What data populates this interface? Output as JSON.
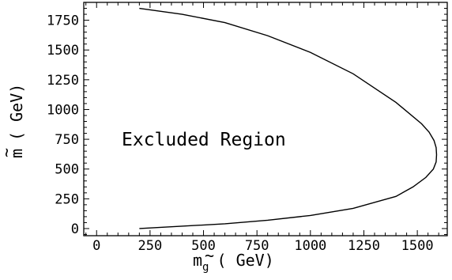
{
  "chart_data": {
    "type": "line",
    "xlabel_main": "m",
    "xlabel_sub": "g",
    "xlabel_unit": "( GeV)",
    "ylabel_main": "m",
    "ylabel_unit": "( GeV)",
    "xlim": [
      -60,
      1640
    ],
    "ylim": [
      -60,
      1900
    ],
    "xticks": [
      0,
      250,
      500,
      750,
      1000,
      1250,
      1500
    ],
    "xtick_labels": [
      "0",
      "250",
      "500",
      "750",
      "1000",
      "1250",
      "1500"
    ],
    "yticks": [
      0,
      250,
      500,
      750,
      1000,
      1250,
      1500,
      1750
    ],
    "ytick_labels": [
      "0",
      "250",
      "500",
      "750",
      "1000",
      "1250",
      "1500",
      "1750"
    ],
    "annotation": "Excluded Region",
    "series": [
      {
        "x": [
          200,
          400,
          600,
          800,
          1000,
          1200,
          1400,
          1480,
          1540,
          1575,
          1588,
          1590,
          1588,
          1578,
          1555,
          1520,
          1400,
          1200,
          1000,
          800,
          600,
          400,
          200
        ],
        "y": [
          0,
          20,
          40,
          70,
          110,
          170,
          270,
          350,
          430,
          500,
          560,
          620,
          680,
          740,
          810,
          880,
          1060,
          1300,
          1480,
          1620,
          1730,
          1800,
          1850
        ]
      }
    ]
  }
}
